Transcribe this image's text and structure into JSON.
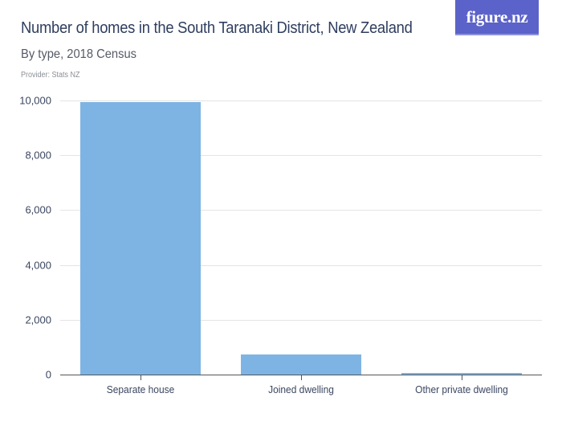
{
  "header": {
    "title": "Number of homes in the South Taranaki District, New Zealand",
    "subtitle": "By type, 2018 Census",
    "provider": "Provider: Stats NZ",
    "logo_text": "figure.nz"
  },
  "colors": {
    "bar": "#7eb4e3",
    "logo_bg": "#5b62c9",
    "title": "#2f3e5f"
  },
  "chart_data": {
    "type": "bar",
    "title": "Number of homes in the South Taranaki District, New Zealand",
    "subtitle": "By type, 2018 Census",
    "xlabel": "",
    "ylabel": "",
    "categories": [
      "Separate house",
      "Joined dwelling",
      "Other private dwelling"
    ],
    "values": [
      9930,
      730,
      60
    ],
    "ylim": [
      0,
      10000
    ],
    "yticks": [
      0,
      2000,
      4000,
      6000,
      8000,
      10000
    ],
    "ytick_labels": [
      "0",
      "2,000",
      "4,000",
      "6,000",
      "8,000",
      "10,000"
    ],
    "grid": true,
    "legend": null
  }
}
